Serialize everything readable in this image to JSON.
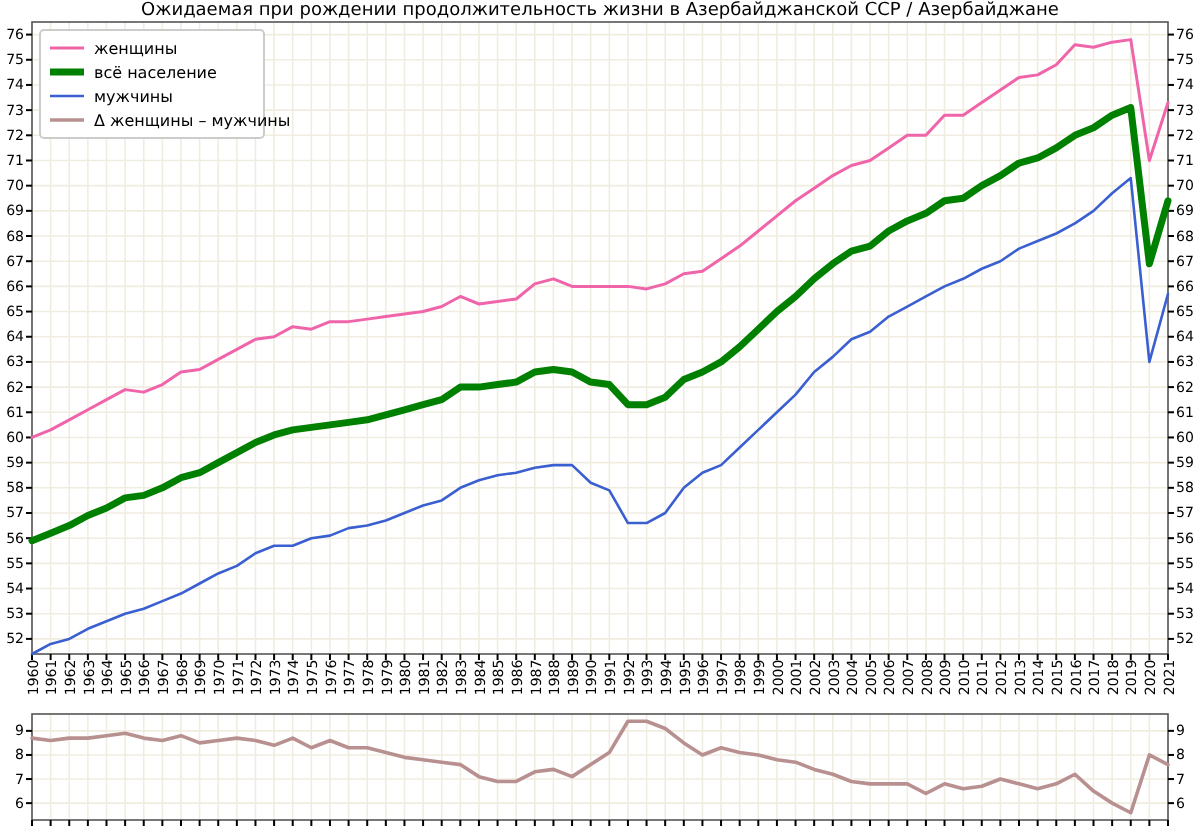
{
  "chart_data": [
    {
      "type": "line",
      "title": "Ожидаемая при рождении продолжительность жизни в Азербайджанской ССР  /  Азербайджане",
      "x": [
        1960,
        1961,
        1962,
        1963,
        1964,
        1965,
        1966,
        1967,
        1968,
        1969,
        1970,
        1971,
        1972,
        1973,
        1974,
        1975,
        1976,
        1977,
        1978,
        1979,
        1980,
        1981,
        1982,
        1983,
        1984,
        1985,
        1986,
        1987,
        1988,
        1989,
        1990,
        1991,
        1992,
        1993,
        1994,
        1995,
        1996,
        1997,
        1998,
        1999,
        2000,
        2001,
        2002,
        2003,
        2004,
        2005,
        2006,
        2007,
        2008,
        2009,
        2010,
        2011,
        2012,
        2013,
        2014,
        2015,
        2016,
        2017,
        2018,
        2019,
        2020,
        2021
      ],
      "series": [
        {
          "name": "женщины",
          "color": "#f064aa",
          "values": [
            60.0,
            60.3,
            60.7,
            61.1,
            61.5,
            61.9,
            61.8,
            62.1,
            62.6,
            62.7,
            63.1,
            63.5,
            63.9,
            64.0,
            64.4,
            64.3,
            64.6,
            64.6,
            64.7,
            64.8,
            64.9,
            65.0,
            65.2,
            65.6,
            65.3,
            65.4,
            65.5,
            66.1,
            66.3,
            66.0,
            66.0,
            66.0,
            66.0,
            65.9,
            66.1,
            66.5,
            66.6,
            67.1,
            67.6,
            68.2,
            68.8,
            69.4,
            69.9,
            70.4,
            70.8,
            71.0,
            71.5,
            72.0,
            72.0,
            72.8,
            72.8,
            73.3,
            73.8,
            74.3,
            74.4,
            74.8,
            75.6,
            75.5,
            75.7,
            75.8,
            71.0,
            73.3
          ]
        },
        {
          "name": "всё население",
          "color": "#008000",
          "values": [
            55.9,
            56.2,
            56.5,
            56.9,
            57.2,
            57.6,
            57.7,
            58.0,
            58.4,
            58.6,
            59.0,
            59.4,
            59.8,
            60.1,
            60.3,
            60.4,
            60.5,
            60.6,
            60.7,
            60.9,
            61.1,
            61.3,
            61.5,
            62.0,
            62.0,
            62.1,
            62.2,
            62.6,
            62.7,
            62.6,
            62.2,
            62.1,
            61.3,
            61.3,
            61.6,
            62.3,
            62.6,
            63.0,
            63.6,
            64.3,
            65.0,
            65.6,
            66.3,
            66.9,
            67.4,
            67.6,
            68.2,
            68.6,
            68.9,
            69.4,
            69.5,
            70.0,
            70.4,
            70.9,
            71.1,
            71.5,
            72.0,
            72.3,
            72.8,
            73.1,
            66.9,
            69.4
          ]
        },
        {
          "name": "мужчины",
          "color": "#3a5fd0",
          "values": [
            51.4,
            51.8,
            52.0,
            52.4,
            52.7,
            53.0,
            53.2,
            53.5,
            53.8,
            54.2,
            54.6,
            54.9,
            55.4,
            55.7,
            55.7,
            56.0,
            56.1,
            56.4,
            56.5,
            56.7,
            57.0,
            57.3,
            57.5,
            58.0,
            58.3,
            58.5,
            58.6,
            58.8,
            58.9,
            58.9,
            58.2,
            57.9,
            56.6,
            56.6,
            57.0,
            58.0,
            58.6,
            58.9,
            59.6,
            60.3,
            61.0,
            61.7,
            62.6,
            63.2,
            63.9,
            64.2,
            64.8,
            65.2,
            65.6,
            66.0,
            66.3,
            66.7,
            67.0,
            67.5,
            67.8,
            68.1,
            68.5,
            69.0,
            69.7,
            70.3,
            63.0,
            65.7
          ]
        }
      ],
      "xlim": [
        1960,
        2021
      ],
      "xticks": [
        1960,
        1961,
        1962,
        1963,
        1964,
        1965,
        1966,
        1967,
        1968,
        1969,
        1970,
        1971,
        1972,
        1973,
        1974,
        1975,
        1976,
        1977,
        1978,
        1979,
        1980,
        1981,
        1982,
        1983,
        1984,
        1985,
        1986,
        1987,
        1988,
        1989,
        1990,
        1991,
        1992,
        1993,
        1994,
        1995,
        1996,
        1997,
        1998,
        1999,
        2000,
        2001,
        2002,
        2003,
        2004,
        2005,
        2006,
        2007,
        2008,
        2009,
        2010,
        2011,
        2012,
        2013,
        2014,
        2015,
        2016,
        2017,
        2018,
        2019,
        2020,
        2021
      ],
      "ylim": [
        51.4,
        76.5
      ],
      "yticks": [
        52,
        53,
        54,
        55,
        56,
        57,
        58,
        59,
        60,
        61,
        62,
        63,
        64,
        65,
        66,
        67,
        68,
        69,
        70,
        71,
        72,
        73,
        74,
        75,
        76
      ],
      "y2lim": [
        51.4,
        76.5
      ],
      "y2ticks": [
        52,
        53,
        54,
        55,
        56,
        57,
        58,
        59,
        60,
        61,
        62,
        63,
        64,
        65,
        66,
        67,
        68,
        69,
        70,
        71,
        72,
        73,
        74,
        75,
        76
      ],
      "grid": true,
      "legend": "top left"
    },
    {
      "type": "line",
      "x": [
        1960,
        1961,
        1962,
        1963,
        1964,
        1965,
        1966,
        1967,
        1968,
        1969,
        1970,
        1971,
        1972,
        1973,
        1974,
        1975,
        1976,
        1977,
        1978,
        1979,
        1980,
        1981,
        1982,
        1983,
        1984,
        1985,
        1986,
        1987,
        1988,
        1989,
        1990,
        1991,
        1992,
        1993,
        1994,
        1995,
        1996,
        1997,
        1998,
        1999,
        2000,
        2001,
        2002,
        2003,
        2004,
        2005,
        2006,
        2007,
        2008,
        2009,
        2010,
        2011,
        2012,
        2013,
        2014,
        2015,
        2016,
        2017,
        2018,
        2019,
        2020,
        2021
      ],
      "series": [
        {
          "name": "Δ женщины – мужчины",
          "color": "#b89090",
          "values": [
            8.7,
            8.6,
            8.7,
            8.7,
            8.8,
            8.9,
            8.7,
            8.6,
            8.8,
            8.5,
            8.6,
            8.7,
            8.6,
            8.4,
            8.7,
            8.3,
            8.6,
            8.3,
            8.3,
            8.1,
            7.9,
            7.8,
            7.7,
            7.6,
            7.1,
            6.9,
            6.9,
            7.3,
            7.4,
            7.1,
            7.6,
            8.1,
            9.4,
            9.4,
            9.1,
            8.5,
            8.0,
            8.3,
            8.1,
            8.0,
            7.8,
            7.7,
            7.4,
            7.2,
            6.9,
            6.8,
            6.8,
            6.8,
            6.4,
            6.8,
            6.6,
            6.7,
            7.0,
            6.8,
            6.6,
            6.8,
            7.2,
            6.5,
            6.0,
            5.6,
            8.0,
            7.6
          ]
        }
      ],
      "xlim": [
        1960,
        2021
      ],
      "ylim": [
        5.3,
        9.7
      ],
      "yticks": [
        6,
        7,
        8,
        9
      ],
      "y2lim": [
        5.3,
        9.7
      ],
      "y2ticks": [
        6,
        7,
        8,
        9
      ],
      "grid": true,
      "tick_labels": "y"
    }
  ]
}
